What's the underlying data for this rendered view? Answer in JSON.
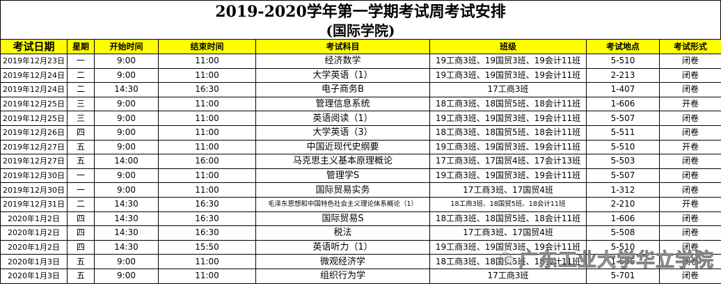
{
  "title": {
    "line1": "2019-2020学年第一学期考试周考试安排",
    "line2": "(国际学院)"
  },
  "columns": [
    "考试日期",
    "星期",
    "开始时间",
    "结束时间",
    "考试科目",
    "班级",
    "考试地点",
    "考试形式"
  ],
  "rows": [
    [
      "2019年12月23日",
      "一",
      "9:00",
      "11:00",
      "经济数学",
      "19工商3班、19国贸3班、19会计11班",
      "5-510",
      "闭卷"
    ],
    [
      "2019年12月24日",
      "二",
      "9:00",
      "11:00",
      "大学英语（1）",
      "19工商3班、19国贸3班、19会计11班",
      "2-213",
      "闭卷"
    ],
    [
      "2019年12月24日",
      "二",
      "14:30",
      "16:30",
      "电子商务B",
      "17工商3班",
      "1-407",
      "闭卷"
    ],
    [
      "2019年12月25日",
      "三",
      "9:00",
      "11:00",
      "管理信息系统",
      "18工商3班、18国贸5班、18会计11班",
      "1-606",
      "开卷"
    ],
    [
      "2019年12月25日",
      "三",
      "9:00",
      "11:00",
      "英语阅读（1）",
      "19工商3班、19国贸3班、19会计11班",
      "5-507",
      "闭卷"
    ],
    [
      "2019年12月26日",
      "四",
      "9:00",
      "11:00",
      "大学英语（3）",
      "18工商3班、18国贸5班、18会计11班",
      "5-511",
      "闭卷"
    ],
    [
      "2019年12月27日",
      "五",
      "9:00",
      "11:00",
      "中国近现代史纲要",
      "19工商3班、19国贸3班、19会计11班",
      "5-510",
      "开卷"
    ],
    [
      "2019年12月27日",
      "五",
      "14:00",
      "16:00",
      "马克思主义基本原理概论",
      "17工商3班、17国贸4班、17会计13班",
      "5-503",
      "闭卷"
    ],
    [
      "2019年12月30日",
      "一",
      "9:00",
      "11:00",
      "管理学S",
      "19工商3班、19国贸3班、19会计11班",
      "5-507",
      "闭卷"
    ],
    [
      "2019年12月30日",
      "一",
      "9:00",
      "11:00",
      "国际贸易实务",
      "17工商3班、17国贸4班",
      "1-312",
      "闭卷"
    ],
    [
      "2019年12月31日",
      "二",
      "14:30",
      "16:30",
      "毛泽东思想和中国特色社会主义理论体系概论（1）",
      "18工商3班、18国贸5班、18会计11班",
      "2-210",
      "开卷"
    ],
    [
      "2020年1月2日",
      "四",
      "14:30",
      "16:30",
      "国际贸易S",
      "18工商3班、18国贸5班、18会计11班",
      "1-606",
      "闭卷"
    ],
    [
      "2020年1月2日",
      "四",
      "14:30",
      "16:30",
      "税法",
      "17工商3班、17国贸4班",
      "5-508",
      "闭卷"
    ],
    [
      "2020年1月2日",
      "四",
      "14:30",
      "15:50",
      "英语听力（1）",
      "19工商3班、19国贸3班、19会计11班",
      "5-510",
      "闭卷"
    ],
    [
      "2020年1月3日",
      "五",
      "9:00",
      "11:00",
      "微观经济学",
      "18工商3班、18国贸5班、18会计11班",
      "1-606",
      "闭卷"
    ],
    [
      "2020年1月3日",
      "五",
      "9:00",
      "11:00",
      "组织行为学",
      "17工商3班",
      "5-701",
      "闭卷"
    ]
  ],
  "watermark": {
    "icon": "wechat-icon",
    "text": "广东工业大学华立学院"
  }
}
